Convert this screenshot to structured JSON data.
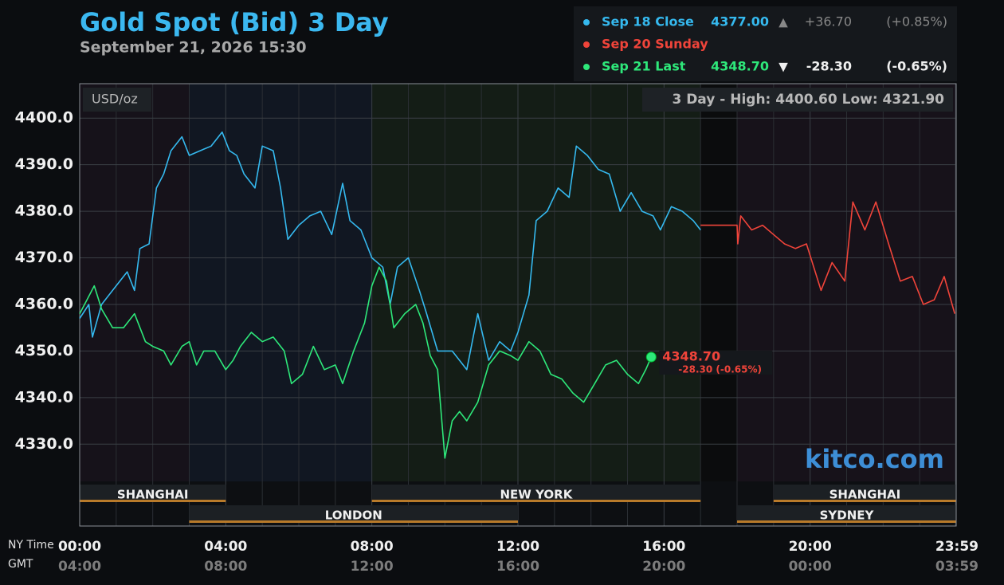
{
  "chart_data": {
    "type": "line",
    "title": "Gold Spot (Bid) 3 Day",
    "subtitle": "September 21, 2026 15:30",
    "unit_label": "USD/oz",
    "range_label": "3 Day - High: 4400.60  Low: 4321.90",
    "watermark": "kitco.com",
    "xlim": [
      0,
      24
    ],
    "ylim": [
      4322,
      4407.4
    ],
    "yticks": [
      {
        "value": 4330,
        "label": "4330.0"
      },
      {
        "value": 4340,
        "label": "4340.0"
      },
      {
        "value": 4350,
        "label": "4350.0"
      },
      {
        "value": 4360,
        "label": "4360.0"
      },
      {
        "value": 4370,
        "label": "4370.0"
      },
      {
        "value": 4380,
        "label": "4380.0"
      },
      {
        "value": 4390,
        "label": "4390.0"
      },
      {
        "value": 4400,
        "label": "4400.0"
      }
    ],
    "xticks": [
      {
        "value": 0,
        "label": "00:00"
      },
      {
        "value": 4,
        "label": "04:00"
      },
      {
        "value": 8,
        "label": "08:00"
      },
      {
        "value": 12,
        "label": "12:00"
      },
      {
        "value": 16,
        "label": "16:00"
      },
      {
        "value": 20,
        "label": "20:00"
      },
      {
        "value": 23.983,
        "label": "23:59"
      }
    ],
    "x_row_label": "NY Time",
    "x2_row_label": "GMT",
    "x2_labels": [
      "04:00",
      "08:00",
      "12:00",
      "16:00",
      "20:00",
      "00:00",
      "03:59"
    ],
    "xminor": [
      1,
      2,
      3,
      5,
      6,
      7,
      9,
      10,
      11,
      13,
      14,
      15,
      17,
      18,
      19,
      21,
      22,
      23
    ],
    "grid": true,
    "shading": [
      {
        "start": 0,
        "end": 3,
        "color": "#16121a"
      },
      {
        "start": 3,
        "end": 8,
        "color": "#111722"
      },
      {
        "start": 8,
        "end": 17,
        "color": "#141d16"
      },
      {
        "start": 17,
        "end": 18,
        "color": "#0b0c0d"
      },
      {
        "start": 18,
        "end": 24,
        "color": "#17121a"
      }
    ],
    "sessions": [
      {
        "name": "SHANGHAI",
        "start": 0,
        "end": 4
      },
      {
        "name": "LONDON",
        "start": 3,
        "end": 12
      },
      {
        "name": "NEW YORK",
        "start": 8,
        "end": 17
      },
      {
        "name": "SHANGHAI",
        "start": 19,
        "end": 24
      },
      {
        "name": "SYDNEY",
        "start": 18,
        "end": 24
      }
    ],
    "series": [
      {
        "name": "Sep 18 Close",
        "color": "#35b9ef",
        "price": "4377.00",
        "arrow": "▲",
        "change": "+36.70",
        "percent": "(+0.85%)",
        "x": [
          0,
          0.25,
          0.35,
          0.6,
          1.0,
          1.3,
          1.5,
          1.65,
          1.9,
          2.1,
          2.3,
          2.5,
          2.8,
          3.0,
          3.3,
          3.6,
          3.9,
          4.1,
          4.3,
          4.5,
          4.8,
          5.0,
          5.3,
          5.5,
          5.7,
          6.0,
          6.3,
          6.6,
          6.9,
          7.2,
          7.4,
          7.7,
          8.0,
          8.3,
          8.5,
          8.7,
          9.0,
          9.3,
          9.5,
          9.8,
          10.2,
          10.6,
          10.9,
          11.2,
          11.5,
          11.8,
          12.0,
          12.3,
          12.5,
          12.8,
          13.1,
          13.4,
          13.6,
          13.9,
          14.2,
          14.5,
          14.8,
          15.1,
          15.4,
          15.7,
          15.9,
          16.2,
          16.5,
          16.8,
          17.0
        ],
        "values": [
          4357,
          4360,
          4353,
          4360,
          4364,
          4367,
          4363,
          4372,
          4373,
          4385,
          4388,
          4393,
          4396,
          4392,
          4393,
          4394,
          4397,
          4393,
          4392,
          4388,
          4385,
          4394,
          4393,
          4385,
          4374,
          4377,
          4379,
          4380,
          4375,
          4386,
          4378,
          4376,
          4370,
          4368,
          4360,
          4368,
          4370,
          4363,
          4358,
          4350,
          4350,
          4346,
          4358,
          4348,
          4352,
          4350,
          4354,
          4362,
          4378,
          4380,
          4385,
          4383,
          4394,
          4392,
          4389,
          4388,
          4380,
          4384,
          4380,
          4379,
          4376,
          4381,
          4380,
          4378,
          4376
        ]
      },
      {
        "name": "Sep 20 Sunday",
        "color": "#f0443a",
        "x": [
          17.0,
          18.0,
          18.02,
          18.1,
          18.4,
          18.7,
          19.0,
          19.3,
          19.6,
          19.9,
          20.3,
          20.6,
          20.95,
          21.17,
          21.5,
          21.8,
          22.15,
          22.47,
          22.8,
          23.1,
          23.4,
          23.67,
          23.96
        ],
        "values": [
          4377,
          4377,
          4373,
          4379,
          4376,
          4377,
          4375,
          4373,
          4372,
          4373,
          4363,
          4369,
          4365,
          4382,
          4376,
          4382,
          4373,
          4365,
          4366,
          4360,
          4361,
          4366,
          4358
        ]
      },
      {
        "name": "Sep 21 Last",
        "color": "#2ee87a",
        "price": "4348.70",
        "arrow": "▼",
        "change": "-28.30",
        "percent": "(-0.65%)",
        "x": [
          0,
          0.2,
          0.4,
          0.6,
          0.9,
          1.2,
          1.5,
          1.8,
          2.0,
          2.3,
          2.5,
          2.8,
          3.0,
          3.2,
          3.4,
          3.7,
          4.0,
          4.2,
          4.4,
          4.7,
          5.0,
          5.3,
          5.6,
          5.8,
          6.1,
          6.4,
          6.7,
          7.0,
          7.2,
          7.5,
          7.8,
          8.0,
          8.2,
          8.4,
          8.6,
          8.9,
          9.2,
          9.4,
          9.6,
          9.8,
          10.0,
          10.2,
          10.4,
          10.6,
          10.9,
          11.2,
          11.5,
          11.8,
          12.0,
          12.3,
          12.6,
          12.9,
          13.2,
          13.5,
          13.8,
          14.1,
          14.4,
          14.7,
          15.0,
          15.3,
          15.5,
          15.65
        ],
        "values": [
          4358,
          4361,
          4364,
          4359,
          4355,
          4355,
          4358,
          4352,
          4351,
          4350,
          4347,
          4351,
          4352,
          4347,
          4350,
          4350,
          4346,
          4348,
          4351,
          4354,
          4352,
          4353,
          4350,
          4343,
          4345,
          4351,
          4346,
          4347,
          4343,
          4350,
          4356,
          4364,
          4368,
          4365,
          4355,
          4358,
          4360,
          4356,
          4349,
          4346,
          4327,
          4335,
          4337,
          4335,
          4339,
          4347,
          4350,
          4349,
          4348,
          4352,
          4350,
          4345,
          4344,
          4341,
          4339,
          4343,
          4347,
          4348,
          4345,
          4343,
          4346,
          4348.7
        ],
        "last_label": "4348.70",
        "last_change": "-28.30 (-0.65%)",
        "last_label_color": "#f0443a"
      }
    ]
  }
}
